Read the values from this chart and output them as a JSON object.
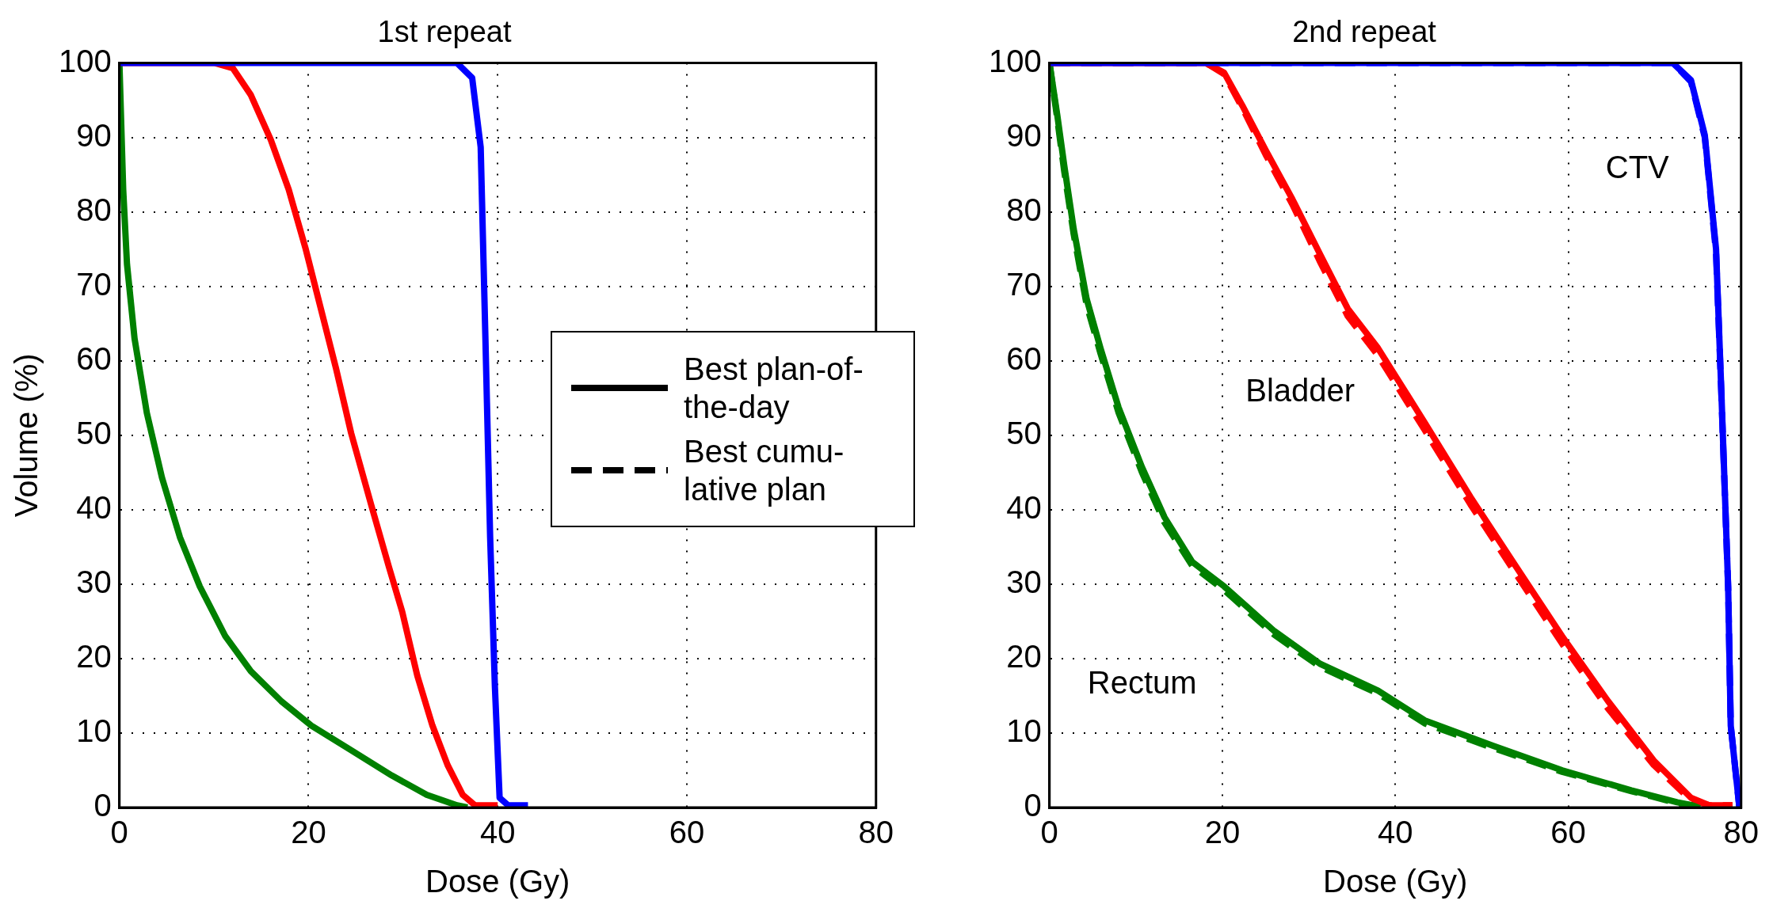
{
  "chart_data": [
    {
      "type": "line",
      "title": "1st repeat",
      "xlabel": "Dose (Gy)",
      "ylabel": "Volume (%)",
      "xlim": [
        0,
        80
      ],
      "xticks": [
        0,
        20,
        40,
        60,
        80
      ],
      "ylim": [
        0,
        100
      ],
      "yticks": [
        0,
        10,
        20,
        30,
        40,
        50,
        60,
        70,
        80,
        90,
        100
      ],
      "grid": true,
      "legend": "right",
      "series": [
        {
          "color": "#0000ff",
          "line_style": "solid",
          "x": [
            0,
            35.7,
            37.3,
            38.2,
            38.7,
            39.2,
            39.7,
            40.2,
            41.1,
            43.2
          ],
          "values": [
            100,
            100,
            98,
            88.7,
            63,
            36.3,
            16.3,
            1.3,
            0.3,
            0.3
          ]
        },
        {
          "color": "#ff0000",
          "line_style": "solid",
          "x": [
            0,
            10.1,
            12,
            13.9,
            16,
            17.9,
            19.7,
            21.3,
            22.9,
            24.5,
            26.7,
            28.5,
            29.9,
            31.5,
            33.1,
            34.7,
            36.3,
            37.6,
            40
          ],
          "values": [
            100,
            100,
            99.3,
            95.7,
            89.7,
            83,
            75,
            67,
            59,
            50.3,
            40.3,
            32.3,
            26.3,
            17.7,
            11,
            5.7,
            1.7,
            0.3,
            0.3
          ]
        },
        {
          "color": "#008000",
          "line_style": "solid",
          "x": [
            0,
            0.4,
            0.8,
            1.6,
            2.9,
            4.5,
            6.4,
            8.5,
            11.2,
            13.9,
            17.1,
            20.3,
            24.5,
            28.8,
            32.5,
            35.7,
            36.8
          ],
          "values": [
            100,
            83,
            73,
            63,
            53,
            44.3,
            36.3,
            29.7,
            23,
            18.3,
            14.3,
            11,
            7.7,
            4.3,
            1.7,
            0.3,
            0
          ]
        },
        {
          "name": "Best plan-of-the-day",
          "color": "#000000",
          "line_style": "solid"
        },
        {
          "name": "Best cumu-lative plan",
          "color": "#000000",
          "line_style": "dashed"
        }
      ]
    },
    {
      "type": "line",
      "title": "2nd repeat",
      "xlabel": "Dose (Gy)",
      "xlim": [
        0,
        80
      ],
      "xticks": [
        0,
        20,
        40,
        60,
        80
      ],
      "ylim": [
        0,
        100
      ],
      "yticks": [
        0,
        10,
        20,
        30,
        40,
        50,
        60,
        70,
        80,
        90,
        100
      ],
      "grid": true,
      "annotations": [
        "CTV",
        "Bladder",
        "Rectum"
      ],
      "series": [
        {
          "color": "#0000ff",
          "line_style": "solid",
          "x": [
            0,
            72.1,
            74.2,
            75.8,
            77.1,
            77.7,
            78.5,
            78.8,
            79.8
          ],
          "values": [
            100,
            100,
            97.7,
            90.3,
            75,
            56.3,
            29.7,
            11,
            0
          ]
        },
        {
          "color": "#ff0000",
          "line_style": "solid",
          "x": [
            0,
            18.1,
            20.2,
            22.3,
            25,
            28.1,
            31.3,
            34.5,
            38,
            43.4,
            48.7,
            54,
            59.3,
            64.6,
            69.9,
            74.2,
            76.3,
            79
          ],
          "values": [
            100,
            100,
            98.7,
            94.3,
            88.3,
            81.7,
            74.3,
            67,
            61.7,
            51.7,
            41.7,
            32.3,
            23,
            14.3,
            6.3,
            1.3,
            0.3,
            0.3
          ]
        },
        {
          "color": "#008000",
          "line_style": "solid",
          "x": [
            0,
            0.9,
            1.7,
            2.8,
            4.3,
            5.9,
            8,
            10.7,
            13.3,
            16.5,
            20.2,
            26,
            31.3,
            38,
            43.4,
            51.3,
            59.3,
            67.3,
            72.6,
            75.3
          ],
          "values": [
            100,
            93,
            86.3,
            77.7,
            68.3,
            61.7,
            53.7,
            45.7,
            39,
            33,
            29.7,
            23.7,
            19.3,
            15.7,
            11.7,
            8.3,
            5,
            2.3,
            0.7,
            0.1
          ]
        },
        {
          "color": "#0000ff",
          "line_style": "dashed",
          "x": [
            0,
            72.1,
            74.2,
            75.8,
            77.1,
            77.7,
            78.5,
            78.8,
            79.8
          ],
          "values": [
            100,
            100,
            97.5,
            90,
            74.5,
            56,
            29.5,
            11,
            0
          ]
        },
        {
          "color": "#ff0000",
          "line_style": "dashed",
          "x": [
            0,
            18.1,
            20.2,
            22.3,
            25,
            28.1,
            31.3,
            34.5,
            38,
            43.4,
            48.7,
            54,
            59.3,
            64.6,
            69.9,
            74.2,
            76.3,
            79
          ],
          "values": [
            100,
            100,
            98.5,
            94,
            87.7,
            81,
            73.3,
            66,
            60.7,
            50.7,
            40.7,
            31.3,
            22,
            13.3,
            5.7,
            1,
            0.3,
            0.3
          ]
        },
        {
          "color": "#008000",
          "line_style": "dashed",
          "x": [
            0,
            0.9,
            1.7,
            2.8,
            4.3,
            5.9,
            8,
            10.7,
            13.3,
            16.5,
            20.2,
            26,
            31.3,
            38,
            43.4,
            51.3,
            59.3,
            67.3,
            72.6,
            75.3
          ],
          "values": [
            100,
            92.5,
            85.5,
            77,
            67.5,
            61,
            53,
            45,
            38.3,
            32.5,
            29.2,
            23.2,
            18.9,
            15.3,
            11.3,
            8,
            4.8,
            2.2,
            0.6,
            0.1
          ]
        }
      ]
    }
  ]
}
